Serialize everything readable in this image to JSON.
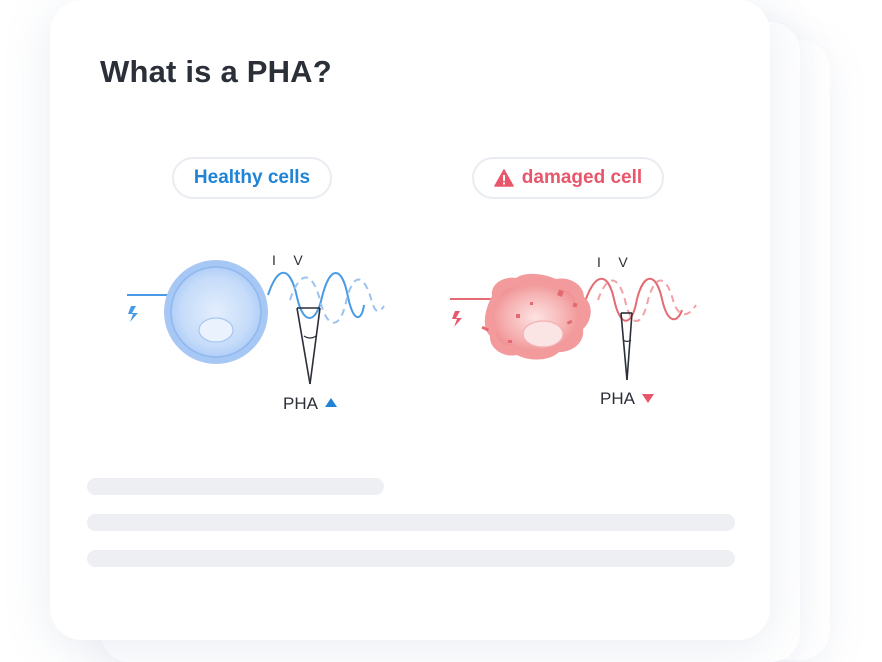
{
  "title": "What is a PHA?",
  "labels": {
    "healthy": "Healthy cells",
    "damaged": "damaged cell"
  },
  "healthy_diagram": {
    "current_label": "I",
    "voltage_label": "V",
    "pha_label": "PHA",
    "pha_trend": "up",
    "color": "#2f8fe0"
  },
  "damaged_diagram": {
    "current_label": "I",
    "voltage_label": "V",
    "pha_label": "PHA",
    "pha_trend": "down",
    "color": "#e8566b"
  },
  "icons": {
    "warning": "warning-triangle-icon",
    "bolt": "lightning-bolt-icon",
    "trend_up": "triangle-up-icon",
    "trend_down": "triangle-down-icon"
  },
  "colors": {
    "title": "#2b2f38",
    "healthy": "#1f84d6",
    "damaged": "#e8566b",
    "placeholder": "#eeeff2"
  }
}
